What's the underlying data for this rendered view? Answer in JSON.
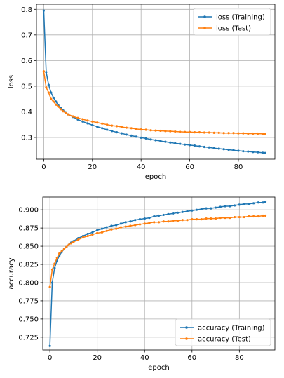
{
  "chart_data": [
    {
      "type": "line",
      "xlabel": "epoch",
      "ylabel": "loss",
      "xlim": [
        -3,
        95
      ],
      "ylim": [
        0.215,
        0.82
      ],
      "xticks": [
        0,
        20,
        40,
        60,
        80
      ],
      "yticks": [
        0.3,
        0.4,
        0.5,
        0.6,
        0.7,
        0.8
      ],
      "grid": true,
      "legend_position": "top-right",
      "series": [
        {
          "name": "loss (Training)",
          "color": "#1f77b4",
          "x": [
            0,
            1,
            2,
            3,
            4,
            5,
            6,
            7,
            8,
            9,
            10,
            12,
            14,
            16,
            18,
            20,
            22,
            24,
            26,
            28,
            30,
            32,
            34,
            36,
            38,
            40,
            42,
            44,
            46,
            48,
            50,
            52,
            54,
            56,
            58,
            60,
            62,
            64,
            66,
            68,
            70,
            72,
            74,
            76,
            78,
            80,
            82,
            84,
            86,
            88,
            90,
            91
          ],
          "y": [
            0.795,
            0.555,
            0.505,
            0.475,
            0.455,
            0.44,
            0.425,
            0.415,
            0.405,
            0.398,
            0.39,
            0.38,
            0.37,
            0.362,
            0.355,
            0.348,
            0.342,
            0.336,
            0.33,
            0.325,
            0.32,
            0.316,
            0.311,
            0.307,
            0.303,
            0.299,
            0.296,
            0.292,
            0.289,
            0.286,
            0.283,
            0.28,
            0.277,
            0.275,
            0.272,
            0.27,
            0.268,
            0.265,
            0.263,
            0.261,
            0.258,
            0.256,
            0.254,
            0.252,
            0.25,
            0.248,
            0.246,
            0.245,
            0.243,
            0.242,
            0.24,
            0.239
          ]
        },
        {
          "name": "loss (Test)",
          "color": "#ff7f0e",
          "x": [
            0,
            1,
            2,
            3,
            4,
            5,
            6,
            7,
            8,
            9,
            10,
            12,
            14,
            16,
            18,
            20,
            22,
            24,
            26,
            28,
            30,
            32,
            34,
            36,
            38,
            40,
            42,
            44,
            46,
            48,
            50,
            52,
            54,
            56,
            58,
            60,
            62,
            64,
            66,
            68,
            70,
            72,
            74,
            76,
            78,
            80,
            82,
            84,
            86,
            88,
            90,
            91
          ],
          "y": [
            0.558,
            0.495,
            0.475,
            0.45,
            0.44,
            0.428,
            0.42,
            0.41,
            0.402,
            0.395,
            0.39,
            0.382,
            0.376,
            0.371,
            0.366,
            0.362,
            0.358,
            0.354,
            0.35,
            0.346,
            0.344,
            0.341,
            0.338,
            0.336,
            0.333,
            0.331,
            0.33,
            0.328,
            0.327,
            0.326,
            0.325,
            0.324,
            0.323,
            0.322,
            0.321,
            0.321,
            0.32,
            0.32,
            0.319,
            0.319,
            0.318,
            0.318,
            0.317,
            0.317,
            0.317,
            0.316,
            0.316,
            0.315,
            0.315,
            0.315,
            0.314,
            0.314
          ]
        }
      ]
    },
    {
      "type": "line",
      "xlabel": "epoch",
      "ylabel": "accuracy",
      "xlim": [
        -3,
        95
      ],
      "ylim": [
        0.7075,
        0.9175
      ],
      "xticks": [
        0,
        20,
        40,
        60,
        80
      ],
      "yticks": [
        0.725,
        0.75,
        0.775,
        0.8,
        0.825,
        0.85,
        0.875,
        0.9
      ],
      "grid": true,
      "legend_position": "bottom-right",
      "series": [
        {
          "name": "accuracy (Training)",
          "color": "#1f77b4",
          "x": [
            0,
            1,
            2,
            3,
            4,
            5,
            6,
            7,
            8,
            9,
            10,
            12,
            14,
            16,
            18,
            20,
            22,
            24,
            26,
            28,
            30,
            32,
            34,
            36,
            38,
            40,
            42,
            44,
            46,
            48,
            50,
            52,
            54,
            56,
            58,
            60,
            62,
            64,
            66,
            68,
            70,
            72,
            74,
            76,
            78,
            80,
            82,
            84,
            86,
            88,
            90,
            91
          ],
          "y": [
            0.713,
            0.8,
            0.82,
            0.83,
            0.837,
            0.842,
            0.846,
            0.849,
            0.852,
            0.855,
            0.857,
            0.861,
            0.864,
            0.867,
            0.869,
            0.872,
            0.874,
            0.876,
            0.878,
            0.879,
            0.881,
            0.883,
            0.884,
            0.886,
            0.887,
            0.888,
            0.889,
            0.891,
            0.892,
            0.893,
            0.894,
            0.895,
            0.896,
            0.897,
            0.898,
            0.899,
            0.9,
            0.901,
            0.902,
            0.902,
            0.903,
            0.904,
            0.905,
            0.905,
            0.906,
            0.907,
            0.908,
            0.908,
            0.909,
            0.91,
            0.91,
            0.911
          ]
        },
        {
          "name": "accuracy (Test)",
          "color": "#ff7f0e",
          "x": [
            0,
            1,
            2,
            3,
            4,
            5,
            6,
            7,
            8,
            9,
            10,
            12,
            14,
            16,
            18,
            20,
            22,
            24,
            26,
            28,
            30,
            32,
            34,
            36,
            38,
            40,
            42,
            44,
            46,
            48,
            50,
            52,
            54,
            56,
            58,
            60,
            62,
            64,
            66,
            68,
            70,
            72,
            74,
            76,
            78,
            80,
            82,
            84,
            86,
            88,
            90,
            91
          ],
          "y": [
            0.794,
            0.818,
            0.826,
            0.834,
            0.84,
            0.843,
            0.846,
            0.849,
            0.852,
            0.854,
            0.856,
            0.859,
            0.862,
            0.864,
            0.866,
            0.868,
            0.869,
            0.871,
            0.873,
            0.874,
            0.876,
            0.877,
            0.878,
            0.879,
            0.88,
            0.881,
            0.882,
            0.883,
            0.883,
            0.884,
            0.884,
            0.885,
            0.885,
            0.886,
            0.886,
            0.887,
            0.887,
            0.887,
            0.888,
            0.888,
            0.888,
            0.889,
            0.889,
            0.889,
            0.89,
            0.89,
            0.89,
            0.891,
            0.891,
            0.891,
            0.892,
            0.892
          ]
        }
      ]
    }
  ]
}
